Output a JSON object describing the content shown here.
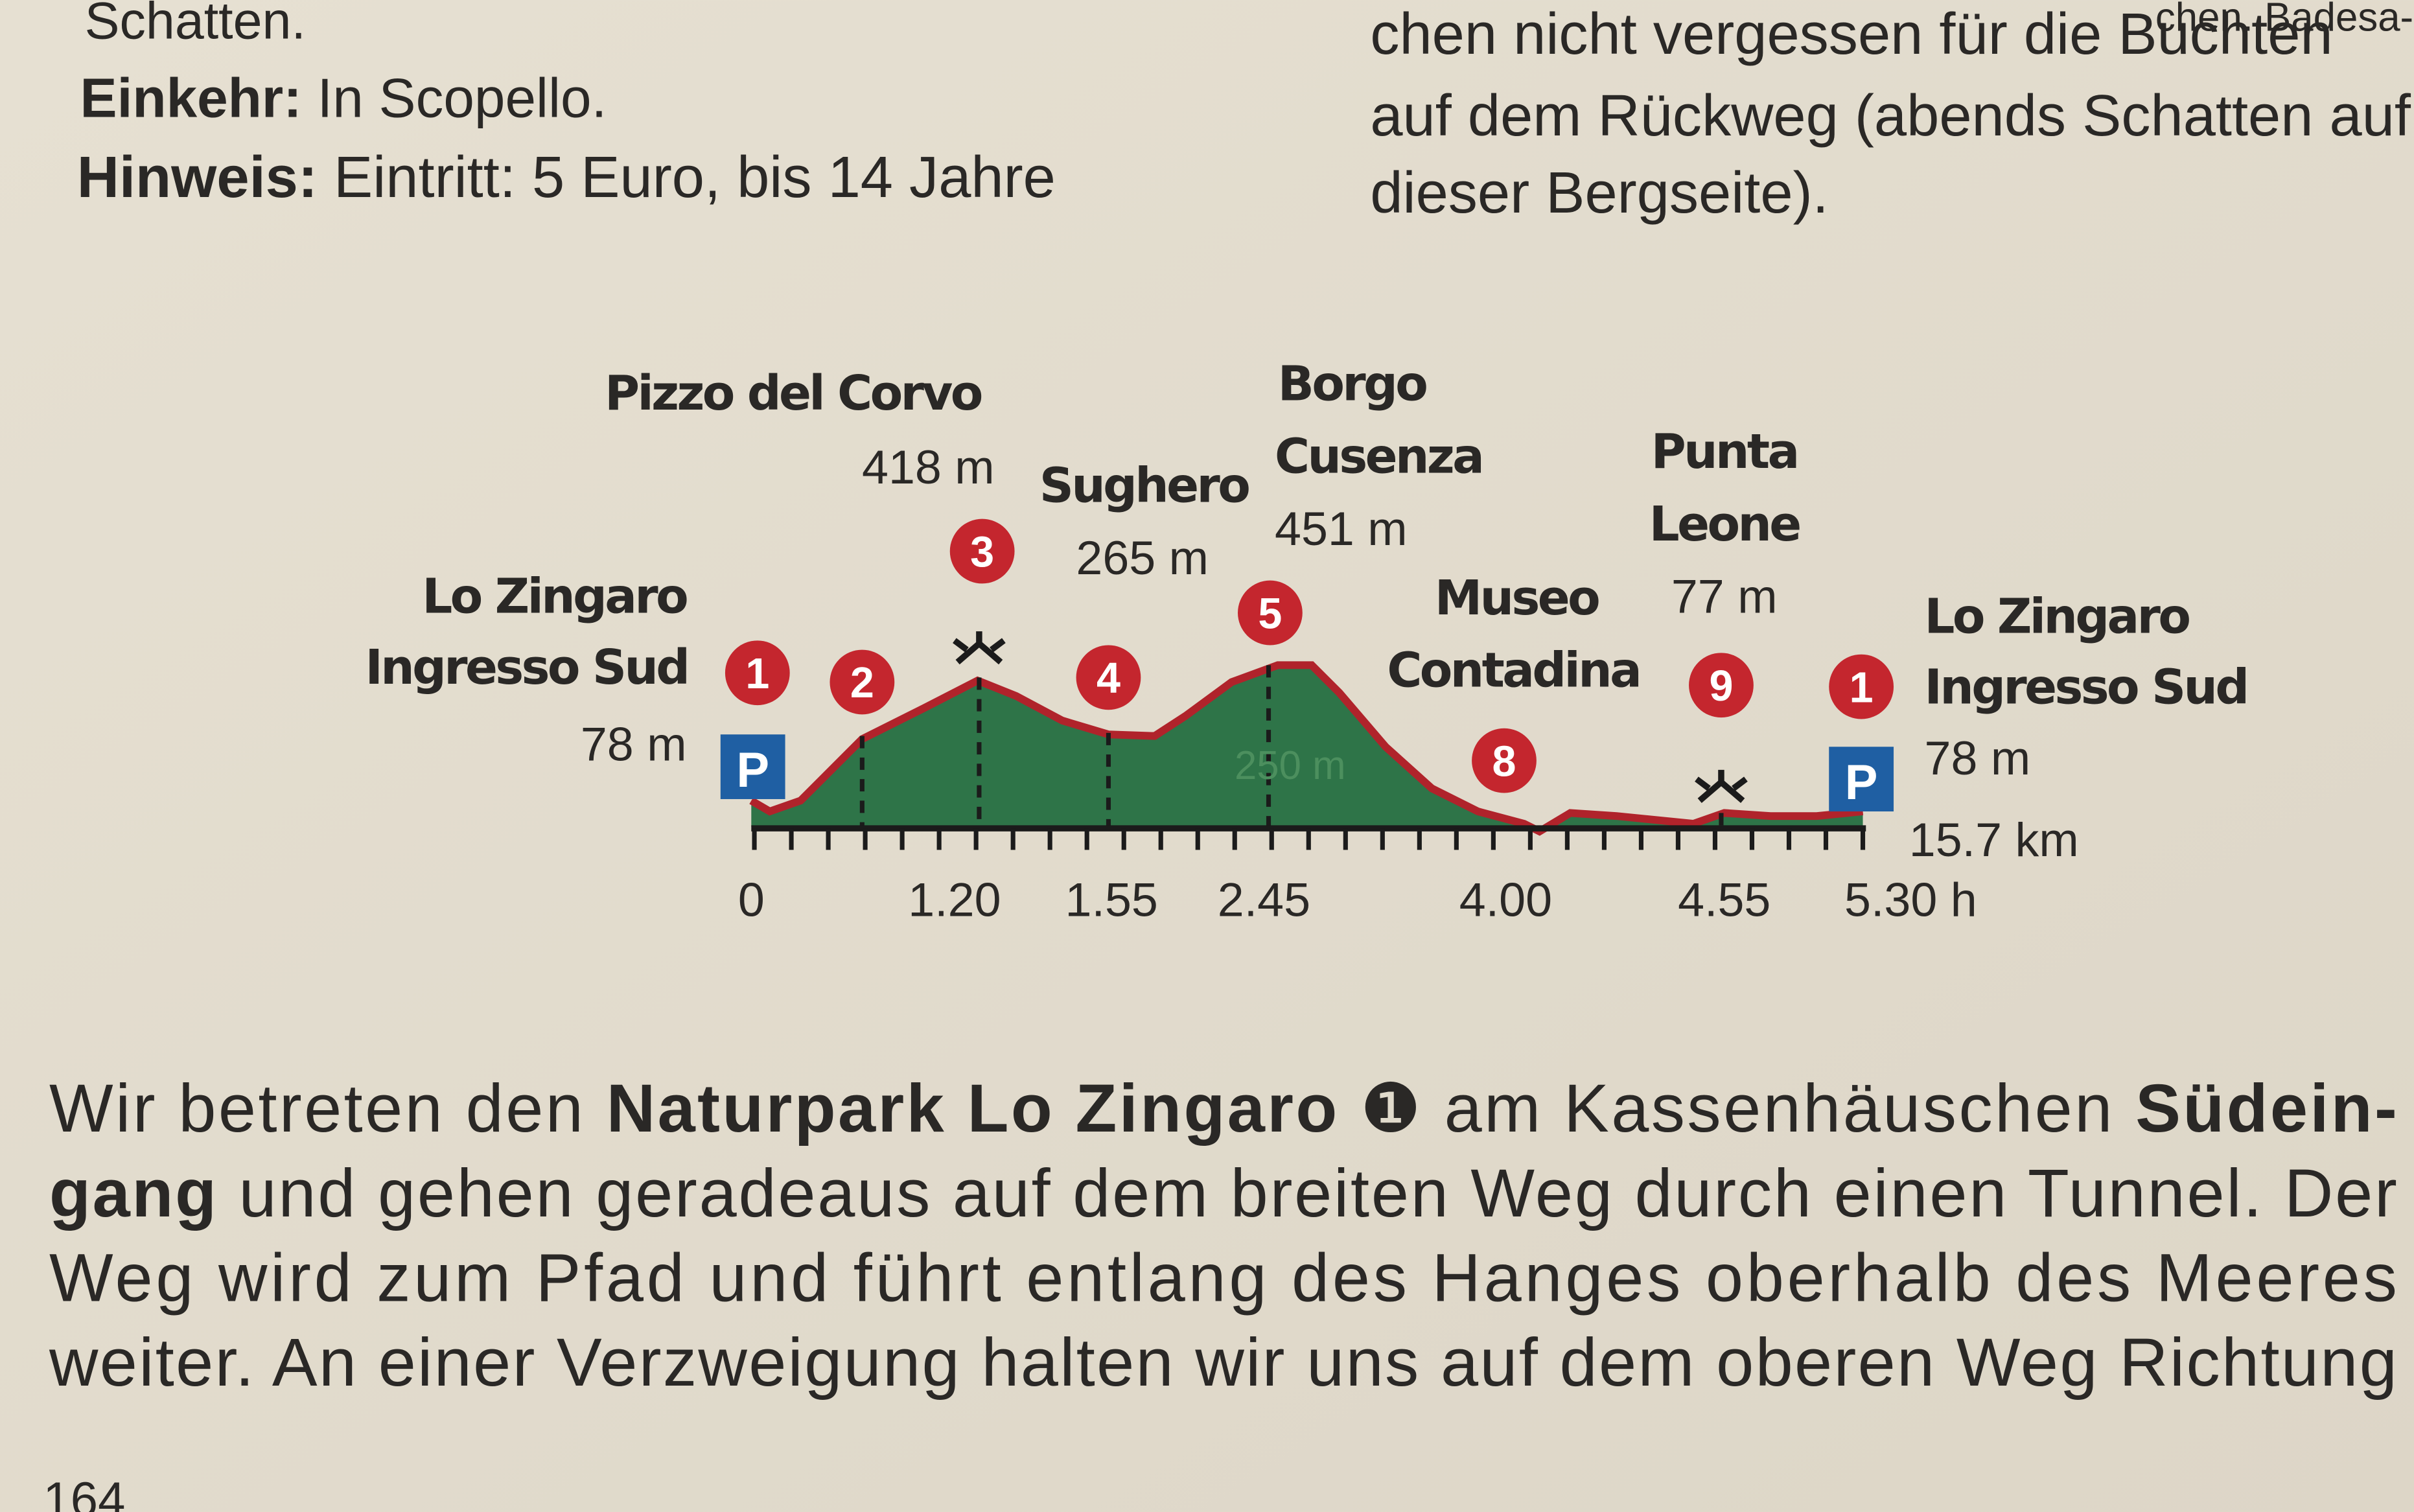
{
  "top_left": {
    "line_1": "Schatten.",
    "einkehr": {
      "label": "Einkehr:",
      "text": "In Scopello."
    },
    "hinweis": {
      "label": "Hinweis:",
      "text": "Eintritt: 5 Euro, bis 14 Jahre"
    }
  },
  "top_right": {
    "lines": [
      "chen. Badesa-",
      "chen nicht vergessen für die Buchten",
      "auf dem Rückweg (abends Schatten auf",
      "dieser Bergseite)."
    ]
  },
  "profile": {
    "waypoints": [
      {
        "name_lines": [
          "Lo Zingaro",
          "Ingresso Sud"
        ],
        "elevation": "78 m"
      },
      {
        "name_lines": [
          "Pizzo del Corvo"
        ],
        "elevation": "418 m"
      },
      {
        "name_lines": [
          "Sughero"
        ],
        "elevation": "265 m"
      },
      {
        "name_lines": [
          "Borgo",
          "Cusenza"
        ],
        "elevation": "451 m"
      },
      {
        "name_lines": [
          "Museo",
          "Contadina"
        ]
      },
      {
        "name_lines": [
          "Punta",
          "Leone"
        ],
        "elevation": "77 m"
      },
      {
        "name_lines": [
          "Lo Zingaro",
          "Ingresso Sud"
        ],
        "elevation": "78 m"
      }
    ],
    "markers": [
      "1",
      "2",
      "3",
      "4",
      "5",
      "8",
      "9",
      "1"
    ],
    "parking": "P",
    "mid_elevation": "250 m",
    "distance": "15.7 km",
    "time_ticks": [
      "0",
      "1.20",
      "1.55",
      "2.45",
      "4.00",
      "4.55",
      "5.30 h"
    ]
  },
  "body": {
    "lines": [
      [
        {
          "text": "Wir betreten den "
        },
        {
          "text": "Naturpark Lo Zingaro",
          "bold": true
        },
        {
          "text": " ❶ am Kassenhäuschen "
        },
        {
          "text": "Südein-",
          "bold": true
        }
      ],
      [
        {
          "text": "gang",
          "bold": true
        },
        {
          "text": " und gehen geradeaus auf dem breiten Weg durch einen Tunnel. Der"
        }
      ],
      [
        {
          "text": "Weg wird zum Pfad und führt entlang des Hanges oberhalb des Meeres"
        }
      ],
      [
        {
          "text": "weiter. An einer Verzweigung halten wir uns auf dem oberen Weg Richtung"
        }
      ]
    ]
  },
  "page_number": "164"
}
